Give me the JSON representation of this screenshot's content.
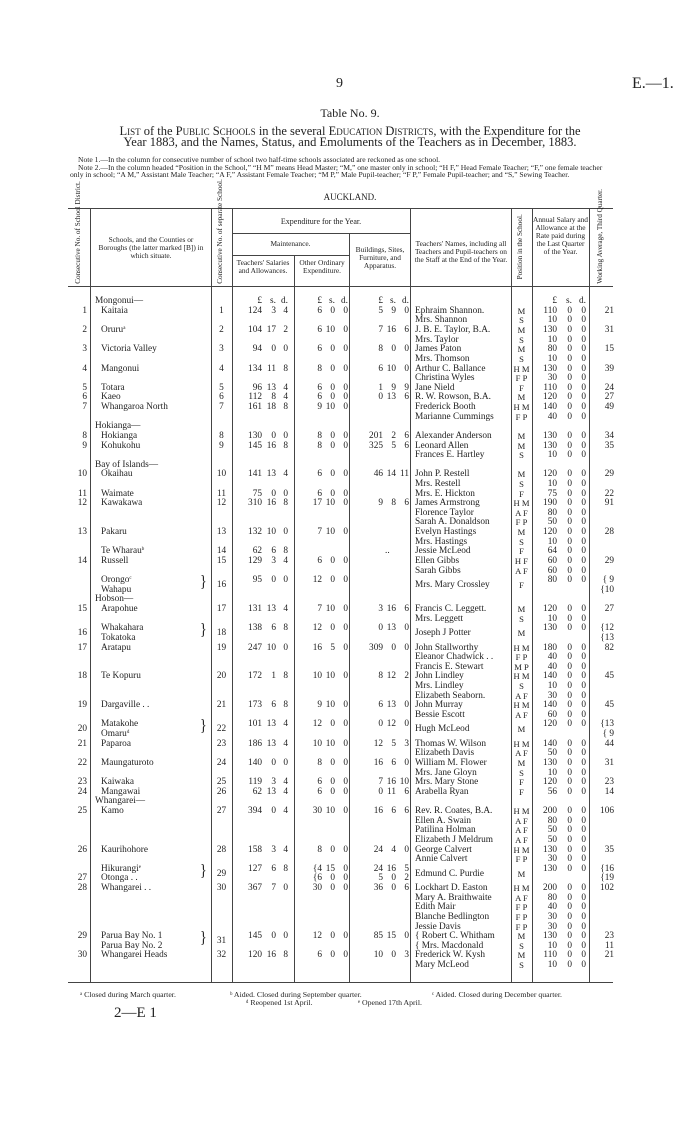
{
  "page": {
    "number": "9",
    "ref": "E.—1.",
    "sig": "2—E 1"
  },
  "title": "Table No. 9.",
  "list_title": {
    "w1": "List",
    "t1": " of the ",
    "w2": "Public Schools",
    "t2": " in the several ",
    "w3": "Education Districts",
    "t3": ", with the Expenditure for the",
    "line2": "Year 1883, and the Names, Status, and Emoluments of the Teachers as in December, 1883."
  },
  "notes": [
    "Note 1.—In the column for consecutive number of school two half-time schools associated are reckoned as one school.",
    "Note 2.—In the column headed “Position in the School,” “H M” means Head Master; “M,” one master only in school; “H F,” Head Female Teacher; “F,” one female teacher only in school; “A M,” Assistant Male Teacher; “A F,” Assistant Female Teacher; “M P,” Male Pupil-teacher; “F P,” Female Pupil-teacher; and “S,” Sewing Teacher."
  ],
  "district": "AUCKLAND.",
  "headers": {
    "consec_district": "Consecutive No. of School District.",
    "schools": "Schools, and the Counties or Boroughs (the latter marked [B]) in which situate.",
    "consec_separate": "Consecutive No. of separate School.",
    "expenditure": "Expenditure for the Year.",
    "maintenance": "Maintenance.",
    "salaries": "Teachers' Salaries and Allowances.",
    "other": "Other Ordinary Expenditure.",
    "buildings": "Buildings, Sites, Furniture, and Apparatus.",
    "teachers": "Teachers' Names, including all Teachers and Pupil-teachers on the Staff at the End of the Year.",
    "position": "Position in the School.",
    "salary": "Annual Salary and Allowance at the Rate paid during the Last Quarter of the Year.",
    "attendance": "Working Average, Third Quarter.",
    "money_units": [
      "£",
      "s.",
      "d."
    ]
  },
  "rows": [
    {
      "school": "Mongonui—",
      "group": true,
      "units": true
    },
    {
      "no": "1",
      "school": "Kaitaia",
      "sep": "1",
      "sal": [
        "124",
        "3",
        "4"
      ],
      "oth": [
        "6",
        "0",
        "0"
      ],
      "bld": [
        "5",
        "9",
        "0"
      ],
      "teacher": "Ephraim Shannon.",
      "pos": "M",
      "salary": [
        "110",
        "0",
        "0"
      ],
      "att": "21"
    },
    {
      "teacher": "Mrs. Shannon",
      "pos": "S",
      "salary": [
        "10",
        "0",
        "0"
      ]
    },
    {
      "no": "2",
      "school": "Oruru",
      "sup": "a",
      "sep": "2",
      "sal": [
        "104",
        "17",
        "2"
      ],
      "oth": [
        "6",
        "10",
        "0"
      ],
      "bld": [
        "7",
        "16",
        "6"
      ],
      "teacher": "J. B. E. Taylor, B.A.",
      "pos": "M",
      "salary": [
        "130",
        "0",
        "0"
      ],
      "att": "31"
    },
    {
      "teacher": "Mrs. Taylor",
      "pos": "S",
      "salary": [
        "10",
        "0",
        "0"
      ]
    },
    {
      "no": "3",
      "school": "Victoria Valley",
      "sep": "3",
      "sal": [
        "94",
        "0",
        "0"
      ],
      "oth": [
        "6",
        "0",
        "0"
      ],
      "bld": [
        "8",
        "0",
        "0"
      ],
      "teacher": "James Paton",
      "pos": "M",
      "salary": [
        "80",
        "0",
        "0"
      ],
      "att": "15"
    },
    {
      "teacher": "Mrs. Thomson",
      "pos": "S",
      "salary": [
        "10",
        "0",
        "0"
      ]
    },
    {
      "no": "4",
      "school": "Mangonui",
      "sep": "4",
      "sal": [
        "134",
        "11",
        "8"
      ],
      "oth": [
        "8",
        "0",
        "0"
      ],
      "bld": [
        "6",
        "10",
        "0"
      ],
      "teacher": "Arthur C. Ballance",
      "pos": "H M",
      "salary": [
        "130",
        "0",
        "0"
      ],
      "att": "39"
    },
    {
      "teacher": "Christina Wyles",
      "pos": "F P",
      "salary": [
        "30",
        "0",
        "0"
      ]
    },
    {
      "no": "5",
      "school": "Totara",
      "sep": "5",
      "sal": [
        "96",
        "13",
        "4"
      ],
      "oth": [
        "6",
        "0",
        "0"
      ],
      "bld": [
        "1",
        "9",
        "9"
      ],
      "teacher": "Jane Nield",
      "pos": "F",
      "salary": [
        "110",
        "0",
        "0"
      ],
      "att": "24"
    },
    {
      "no": "6",
      "school": "Kaeo",
      "sep": "6",
      "sal": [
        "112",
        "8",
        "4"
      ],
      "oth": [
        "6",
        "0",
        "0"
      ],
      "bld": [
        "0",
        "13",
        "6"
      ],
      "teacher": "R. W. Rowson, B.A.",
      "pos": "M",
      "salary": [
        "120",
        "0",
        "0"
      ],
      "att": "27"
    },
    {
      "no": "7",
      "school": "Whangaroa North",
      "sep": "7",
      "sal": [
        "161",
        "18",
        "8"
      ],
      "oth": [
        "9",
        "10",
        "0"
      ],
      "teacher": "Frederick Booth",
      "pos": "H M",
      "salary": [
        "140",
        "0",
        "0"
      ],
      "att": "49"
    },
    {
      "teacher": "Marianne Cummings",
      "pos": "F P",
      "salary": [
        "40",
        "0",
        "0"
      ]
    },
    {
      "school": "Hokianga—",
      "group": true
    },
    {
      "no": "8",
      "school": "Hokianga",
      "sep": "8",
      "sal": [
        "130",
        "0",
        "0"
      ],
      "oth": [
        "8",
        "0",
        "0"
      ],
      "bld": [
        "201",
        "2",
        "6"
      ],
      "teacher": "Alexander Anderson",
      "pos": "M",
      "salary": [
        "130",
        "0",
        "0"
      ],
      "att": "34"
    },
    {
      "no": "9",
      "school": "Kohukohu",
      "sep": "9",
      "sal": [
        "145",
        "16",
        "8"
      ],
      "oth": [
        "8",
        "0",
        "0"
      ],
      "bld": [
        "325",
        "5",
        "6"
      ],
      "teacher": "Leonard Allen",
      "pos": "M",
      "salary": [
        "130",
        "0",
        "0"
      ],
      "att": "35"
    },
    {
      "teacher": "Frances E. Hartley",
      "pos": "S",
      "salary": [
        "10",
        "0",
        "0"
      ]
    },
    {
      "school": "Bay of Islands—",
      "group": true
    },
    {
      "no": "10",
      "school": "Okaihau",
      "sep": "10",
      "sal": [
        "141",
        "13",
        "4"
      ],
      "oth": [
        "6",
        "0",
        "0"
      ],
      "bld": [
        "46",
        "14",
        "11"
      ],
      "teacher": "John P. Restell",
      "pos": "M",
      "salary": [
        "120",
        "0",
        "0"
      ],
      "att": "29"
    },
    {
      "teacher": "Mrs. Restell",
      "pos": "S",
      "salary": [
        "10",
        "0",
        "0"
      ]
    },
    {
      "no": "11",
      "school": "Waimate",
      "sep": "11",
      "sal": [
        "75",
        "0",
        "0"
      ],
      "oth": [
        "6",
        "0",
        "0"
      ],
      "teacher": "Mrs. E. Hickton",
      "pos": "F",
      "salary": [
        "75",
        "0",
        "0"
      ],
      "att": "22"
    },
    {
      "no": "12",
      "school": "Kawakawa",
      "sep": "12",
      "sal": [
        "310",
        "16",
        "8"
      ],
      "oth": [
        "17",
        "10",
        "0"
      ],
      "bld": [
        "9",
        "8",
        "6"
      ],
      "teacher": "James Armstrong",
      "pos": "H M",
      "salary": [
        "190",
        "0",
        "0"
      ],
      "att": "91"
    },
    {
      "teacher": "Florence Taylor",
      "pos": "A F",
      "salary": [
        "80",
        "0",
        "0"
      ]
    },
    {
      "teacher": "Sarah A. Donaldson",
      "pos": "F P",
      "salary": [
        "50",
        "0",
        "0"
      ]
    },
    {
      "no": "13",
      "school": "Pakaru",
      "sep": "13",
      "sal": [
        "132",
        "10",
        "0"
      ],
      "oth": [
        "7",
        "10",
        "0"
      ],
      "teacher": "Evelyn Hastings",
      "pos": "M",
      "salary": [
        "120",
        "0",
        "0"
      ],
      "att": "28"
    },
    {
      "teacher": "Mrs. Hastings",
      "pos": "S",
      "salary": [
        "10",
        "0",
        "0"
      ]
    },
    {
      "school": "Te Wharau",
      "sup": "b",
      "sep": "14",
      "sal": [
        "62",
        "6",
        "8"
      ],
      "bldtxt": "..",
      "teacher": "Jessie McLeod",
      "pos": "F",
      "salary": [
        "64",
        "0",
        "0"
      ]
    },
    {
      "no": "14",
      "school": "Russell",
      "sep": "15",
      "sal": [
        "129",
        "3",
        "4"
      ],
      "oth": [
        "6",
        "0",
        "0"
      ],
      "teacher": "Ellen Gibbs",
      "pos": "H F",
      "salary": [
        "60",
        "0",
        "0"
      ],
      "att": "29"
    },
    {
      "teacher": "Sarah Gibbs",
      "pos": "A F",
      "salary": [
        "60",
        "0",
        "0"
      ]
    },
    {
      "school": "Orongo",
      "sup": "c",
      "brace": "}",
      "sep": "16",
      "sal": [
        "95",
        "0",
        "0"
      ],
      "oth": [
        "12",
        "0",
        "0"
      ],
      "teacher": "Mrs. Mary Crossley",
      "pos": "F",
      "salary": [
        "80",
        "0",
        "0"
      ],
      "att": "{ 9",
      "mid": true
    },
    {
      "school": "Wahapu",
      "att": "{10"
    },
    {
      "school": "Hobson—",
      "group": true
    },
    {
      "no": "15",
      "school": "Arapohue",
      "sep": "17",
      "sal": [
        "131",
        "13",
        "4"
      ],
      "oth": [
        "7",
        "10",
        "0"
      ],
      "bld": [
        "3",
        "16",
        "6"
      ],
      "teacher": "Francis C. Leggett.",
      "pos": "M",
      "salary": [
        "120",
        "0",
        "0"
      ],
      "att": "27"
    },
    {
      "teacher": "Mrs. Leggett",
      "pos": "S",
      "salary": [
        "10",
        "0",
        "0"
      ]
    },
    {
      "no": "16",
      "school": "Whakahara",
      "brace": "}",
      "sep": "18",
      "sal": [
        "138",
        "6",
        "8"
      ],
      "oth": [
        "12",
        "0",
        "0"
      ],
      "bld": [
        "0",
        "13",
        "0"
      ],
      "teacher": "Joseph J Potter",
      "pos": "M",
      "salary": [
        "130",
        "0",
        "0"
      ],
      "att": "{12",
      "mid": true
    },
    {
      "school": "Tokatoka",
      "att": "{13"
    },
    {
      "no": "17",
      "school": "Aratapu",
      "sep": "19",
      "sal": [
        "247",
        "10",
        "0"
      ],
      "oth": [
        "16",
        "5",
        "0"
      ],
      "bld": [
        "309",
        "0",
        "0"
      ],
      "teacher": "John Stallworthy",
      "pos": "H M",
      "salary": [
        "180",
        "0",
        "0"
      ],
      "att": "82"
    },
    {
      "teacher": "Eleanor Chadwick . .",
      "pos": "F P",
      "salary": [
        "40",
        "0",
        "0"
      ]
    },
    {
      "teacher": "Francis E. Stewart",
      "pos": "M P",
      "salary": [
        "40",
        "0",
        "0"
      ]
    },
    {
      "no": "18",
      "school": "Te Kopuru",
      "sep": "20",
      "sal": [
        "172",
        "1",
        "8"
      ],
      "oth": [
        "10",
        "10",
        "0"
      ],
      "bld": [
        "8",
        "12",
        "2"
      ],
      "teacher": "John Lindley",
      "pos": "H M",
      "salary": [
        "140",
        "0",
        "0"
      ],
      "att": "45"
    },
    {
      "teacher": "Mrs. Lindley",
      "pos": "S",
      "salary": [
        "10",
        "0",
        "0"
      ]
    },
    {
      "teacher": "Elizabeth Seaborn.",
      "pos": "A F",
      "salary": [
        "30",
        "0",
        "0"
      ]
    },
    {
      "no": "19",
      "school": "Dargaville . .",
      "sep": "21",
      "sal": [
        "173",
        "6",
        "8"
      ],
      "oth": [
        "9",
        "10",
        "0"
      ],
      "bld": [
        "6",
        "13",
        "0"
      ],
      "teacher": "John Murray",
      "pos": "H M",
      "salary": [
        "140",
        "0",
        "0"
      ],
      "att": "45"
    },
    {
      "teacher": "Bessie Escott",
      "pos": "A F",
      "salary": [
        "60",
        "0",
        "0"
      ]
    },
    {
      "no": "20",
      "school": "Matakohe",
      "brace": "}",
      "sep": "22",
      "sal": [
        "101",
        "13",
        "4"
      ],
      "oth": [
        "12",
        "0",
        "0"
      ],
      "bld": [
        "0",
        "12",
        "0"
      ],
      "teacher": "Hugh McLeod",
      "pos": "M",
      "salary": [
        "120",
        "0",
        "0"
      ],
      "att": "{13",
      "mid": true
    },
    {
      "school": "Omaru",
      "sup": "d",
      "att": "{ 9"
    },
    {
      "no": "21",
      "school": "Paparoa",
      "sep": "23",
      "sal": [
        "186",
        "13",
        "4"
      ],
      "oth": [
        "10",
        "10",
        "0"
      ],
      "bld": [
        "12",
        "5",
        "3"
      ],
      "teacher": "Thomas W. Wilson",
      "pos": "H M",
      "salary": [
        "140",
        "0",
        "0"
      ],
      "att": "44"
    },
    {
      "teacher": "Elizabeth Davis",
      "pos": "A F",
      "salary": [
        "50",
        "0",
        "0"
      ]
    },
    {
      "no": "22",
      "school": "Maungaturoto",
      "sep": "24",
      "sal": [
        "140",
        "0",
        "0"
      ],
      "oth": [
        "8",
        "0",
        "0"
      ],
      "bld": [
        "16",
        "6",
        "0"
      ],
      "teacher": "William M. Flower",
      "pos": "M",
      "salary": [
        "130",
        "0",
        "0"
      ],
      "att": "31"
    },
    {
      "teacher": "Mrs. Jane Gloyn",
      "pos": "S",
      "salary": [
        "10",
        "0",
        "0"
      ]
    },
    {
      "no": "23",
      "school": "Kaiwaka",
      "sep": "25",
      "sal": [
        "119",
        "3",
        "4"
      ],
      "oth": [
        "6",
        "0",
        "0"
      ],
      "bld": [
        "7",
        "16",
        "10"
      ],
      "teacher": "Mrs. Mary Stone",
      "pos": "F",
      "salary": [
        "120",
        "0",
        "0"
      ],
      "att": "23"
    },
    {
      "no": "24",
      "school": "Mangawai",
      "sep": "26",
      "sal": [
        "62",
        "13",
        "4"
      ],
      "oth": [
        "6",
        "0",
        "0"
      ],
      "bld": [
        "0",
        "11",
        "6"
      ],
      "teacher": "Arabella Ryan",
      "pos": "F",
      "salary": [
        "56",
        "0",
        "0"
      ],
      "att": "14"
    },
    {
      "school": "Whangarei—",
      "group": true
    },
    {
      "no": "25",
      "school": "Kamo",
      "sep": "27",
      "sal": [
        "394",
        "0",
        "4"
      ],
      "oth": [
        "30",
        "10",
        "0"
      ],
      "bld": [
        "16",
        "6",
        "6"
      ],
      "teacher": "Rev. R. Coates, B.A.",
      "pos": "H M",
      "salary": [
        "200",
        "0",
        "0"
      ],
      "att": "106"
    },
    {
      "teacher": "Ellen A. Swain",
      "pos": "A F",
      "salary": [
        "80",
        "0",
        "0"
      ]
    },
    {
      "teacher": "Patilina Holman",
      "pos": "A F",
      "salary": [
        "50",
        "0",
        "0"
      ]
    },
    {
      "teacher": "Elizabeth J Meldrum",
      "pos": "A F",
      "salary": [
        "50",
        "0",
        "0"
      ]
    },
    {
      "no": "26",
      "school": "Kaurihohore",
      "sep": "28",
      "sal": [
        "158",
        "3",
        "4"
      ],
      "oth": [
        "8",
        "0",
        "0"
      ],
      "bld": [
        "24",
        "4",
        "0"
      ],
      "teacher": "George Calvert",
      "pos": "H M",
      "salary": [
        "130",
        "0",
        "0"
      ],
      "att": "35"
    },
    {
      "teacher": "Annie Calvert",
      "pos": "F P",
      "salary": [
        "30",
        "0",
        "0"
      ]
    },
    {
      "school": "Hikurangi",
      "sup": "e",
      "brace": "}",
      "sep": "29",
      "sal": [
        "127",
        "6",
        "8"
      ],
      "oth": [
        "{4",
        "15",
        "0"
      ],
      "bld": [
        "24",
        "16",
        "5"
      ],
      "teacher": "Edmund C. Purdie",
      "pos": "M",
      "salary": [
        "130",
        "0",
        "0"
      ],
      "att": "{16",
      "midfields": true
    },
    {
      "no": "27",
      "school": "Otonga . .",
      "oth": [
        "{6",
        "0",
        "0"
      ],
      "bld": [
        "5",
        "0",
        "2"
      ],
      "att": "{19"
    },
    {
      "no": "28",
      "school": "Whangarei . .",
      "sep": "30",
      "sal": [
        "367",
        "7",
        "0"
      ],
      "oth": [
        "30",
        "0",
        "0"
      ],
      "bld": [
        "36",
        "0",
        "6"
      ],
      "teacher": "Lockhart D. Easton",
      "pos": "H M",
      "salary": [
        "200",
        "0",
        "0"
      ],
      "att": "102"
    },
    {
      "teacher": "Mary A. Braithwaite",
      "pos": "A F",
      "salary": [
        "80",
        "0",
        "0"
      ]
    },
    {
      "teacher": "Edith Mair",
      "pos": "F P",
      "salary": [
        "40",
        "0",
        "0"
      ]
    },
    {
      "teacher": "Blanche Bedlington",
      "pos": "F P",
      "salary": [
        "30",
        "0",
        "0"
      ]
    },
    {
      "teacher": "Jessie Davis",
      "pos": "F P",
      "salary": [
        "30",
        "0",
        "0"
      ]
    },
    {
      "no": "29",
      "school": "Parua Bay No. 1",
      "brace": "}",
      "sep": "31",
      "sal": [
        "145",
        "0",
        "0"
      ],
      "oth": [
        "12",
        "0",
        "0"
      ],
      "bld": [
        "85",
        "15",
        "0"
      ],
      "teacher": "{ Robert C. Whitham",
      "pos": "M",
      "salary": [
        "130",
        "0",
        "0"
      ],
      "att": "23",
      "midmoney": true
    },
    {
      "school": "Parua Bay No. 2",
      "teacher": "{ Mrs. Macdonald",
      "pos": "S",
      "salary": [
        "10",
        "0",
        "0"
      ],
      "att": "11"
    },
    {
      "no": "30",
      "school": "Whangarei Heads",
      "sep": "32",
      "sal": [
        "120",
        "16",
        "8"
      ],
      "oth": [
        "6",
        "0",
        "0"
      ],
      "bld": [
        "10",
        "0",
        "3"
      ],
      "teacher": "Frederick W. Kysh",
      "pos": "M",
      "salary": [
        "110",
        "0",
        "0"
      ],
      "att": "21"
    },
    {
      "teacher": "Mary McLeod",
      "pos": "S",
      "salary": [
        "10",
        "0",
        "0"
      ]
    }
  ],
  "footnotes": {
    "a": "ᵃ Closed during March quarter.",
    "b": "ᵇ Aided.   Closed during September quarter.",
    "c": "ᶜ Aided.   Closed during December quarter.",
    "d": "ᵈ Reopened 1st April.",
    "e": "ᵉ Opened 17th April."
  }
}
